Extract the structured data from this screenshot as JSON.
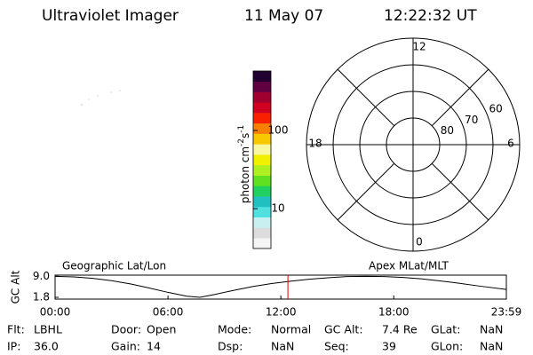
{
  "header": {
    "title": "Ultraviolet Imager",
    "date": "11 May 07",
    "time": "12:22:32 UT"
  },
  "colorbar": {
    "label_parts": [
      "photon cm",
      "-2",
      "s",
      "-1"
    ],
    "scale": "log",
    "lim": [
      3.1,
      575
    ],
    "ticks": [
      10,
      100
    ],
    "colors": [
      "#f4f4f4",
      "#dcdcdc",
      "#c8f0f0",
      "#50e0e0",
      "#20c0c0",
      "#20d060",
      "#60e020",
      "#b0f020",
      "#f0f000",
      "#f8f8a0",
      "#f8c800",
      "#f88000",
      "#f82000",
      "#d00020",
      "#a00030",
      "#600040",
      "#200030"
    ]
  },
  "polar": {
    "rlim": [
      90,
      50
    ],
    "rticks": [
      80,
      70,
      60
    ],
    "angle_ticks": [
      12,
      6,
      0,
      18
    ]
  },
  "chart_data": {
    "type": "line",
    "title_left": "Geographic Lat/Lon",
    "title_right": "Apex MLat/MLT",
    "ylabel": "GC Alt",
    "x": [
      0,
      1,
      2,
      3,
      4,
      5,
      6,
      7,
      7.7,
      8.5,
      9.5,
      10.5,
      11.5,
      12.5,
      13.5,
      14.5,
      15.5,
      16.5,
      17.5,
      18.5,
      19.5,
      20.5,
      21.5,
      22.5,
      23.983
    ],
    "series": [
      {
        "color": "#000000",
        "values": [
          9.0,
          8.8,
          8.3,
          7.5,
          6.4,
          5.0,
          3.5,
          2.2,
          1.8,
          2.8,
          4.2,
          5.5,
          6.5,
          7.3,
          8.0,
          8.5,
          8.9,
          9.0,
          8.9,
          8.6,
          8.1,
          7.4,
          6.6,
          5.7,
          4.5
        ]
      }
    ],
    "xlim": [
      0,
      23.983
    ],
    "xticks": [
      {
        "value": 0,
        "label": "00:00"
      },
      {
        "value": 6,
        "label": "06:00"
      },
      {
        "value": 12,
        "label": "12:00"
      },
      {
        "value": 18,
        "label": "18:00"
      },
      {
        "value": 23.983,
        "label": "23:59"
      }
    ],
    "ylim": [
      1.2,
      9.4
    ],
    "yticks": [
      {
        "value": 9.0,
        "label": "9.0"
      },
      {
        "value": 1.8,
        "label": "1.8"
      }
    ],
    "marker": {
      "x": 12.375,
      "color": "#e00000"
    }
  },
  "status": {
    "rows": [
      [
        {
          "label": "Flt:",
          "value": "LBHL"
        },
        {
          "label": "Door:",
          "value": "Open"
        },
        {
          "label": "Mode:",
          "value": "Normal"
        },
        {
          "label": "GC Alt:",
          "value": "7.4 Re"
        },
        {
          "label": "GLat:",
          "value": "NaN"
        }
      ],
      [
        {
          "label": "IP:",
          "value": "36.0"
        },
        {
          "label": "Gain:",
          "value": "14"
        },
        {
          "label": "Dsp:",
          "value": "NaN"
        },
        {
          "label": "Seq:",
          "value": "39"
        },
        {
          "label": "GLon:",
          "value": "NaN"
        }
      ]
    ]
  }
}
